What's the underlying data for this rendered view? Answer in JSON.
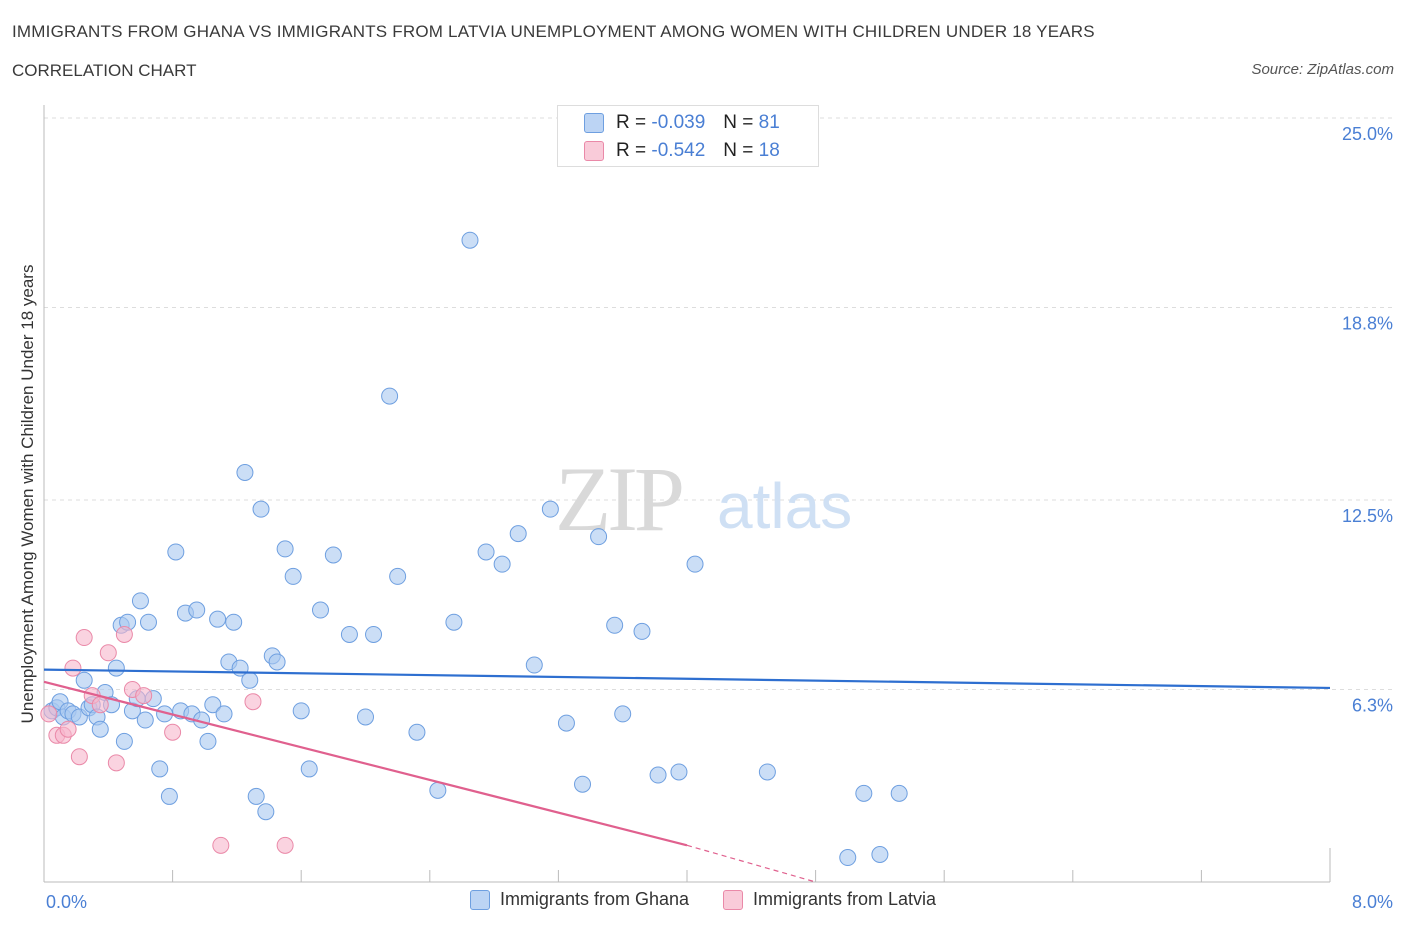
{
  "header": {
    "title": "IMMIGRANTS FROM GHANA VS IMMIGRANTS FROM LATVIA UNEMPLOYMENT AMONG WOMEN WITH CHILDREN UNDER 18 YEARS",
    "subtitle": "CORRELATION CHART",
    "source": "Source: ZipAtlas.com"
  },
  "watermark": {
    "zip": "ZIP",
    "atlas": "atlas"
  },
  "stats": {
    "r_label": "R =",
    "n_label": "N =",
    "rows": [
      {
        "r": "-0.039",
        "n": "81"
      },
      {
        "r": "-0.542",
        "n": "18"
      }
    ]
  },
  "colors": {
    "ghana_fill": "#a8c8f0",
    "ghana_stroke": "#6e9fe0",
    "ghana_line": "#2e6fd0",
    "latvia_fill": "#f7b6cb",
    "latvia_stroke": "#ea89a8",
    "latvia_line": "#e0608e",
    "tick_label": "#4a7fd4",
    "grid": "#dddddd"
  },
  "chart_data": {
    "type": "scatter",
    "xlabel": "",
    "ylabel": "Unemployment Among Women with Children Under 18 years",
    "xlim": [
      0,
      8.0
    ],
    "ylim": [
      0,
      25.0
    ],
    "x_tick_labels": [
      "0.0%",
      "8.0%"
    ],
    "y_ticks": [
      6.3,
      12.5,
      18.8,
      25.0
    ],
    "y_tick_labels": [
      "6.3%",
      "12.5%",
      "18.8%",
      "25.0%"
    ],
    "grid": true,
    "legend_position": "bottom",
    "series": [
      {
        "name": "Immigrants from Ghana",
        "points": [
          [
            0.05,
            5.6
          ],
          [
            0.08,
            5.7
          ],
          [
            0.1,
            5.9
          ],
          [
            0.12,
            5.4
          ],
          [
            0.15,
            5.6
          ],
          [
            0.18,
            5.5
          ],
          [
            0.22,
            5.4
          ],
          [
            0.25,
            6.6
          ],
          [
            0.28,
            5.7
          ],
          [
            0.3,
            5.8
          ],
          [
            0.33,
            5.4
          ],
          [
            0.35,
            5.0
          ],
          [
            0.38,
            6.2
          ],
          [
            0.42,
            5.8
          ],
          [
            0.45,
            7.0
          ],
          [
            0.48,
            8.4
          ],
          [
            0.5,
            4.6
          ],
          [
            0.52,
            8.5
          ],
          [
            0.55,
            5.6
          ],
          [
            0.58,
            6.0
          ],
          [
            0.6,
            9.2
          ],
          [
            0.63,
            5.3
          ],
          [
            0.65,
            8.5
          ],
          [
            0.68,
            6.0
          ],
          [
            0.72,
            3.7
          ],
          [
            0.75,
            5.5
          ],
          [
            0.78,
            2.8
          ],
          [
            0.82,
            10.8
          ],
          [
            0.85,
            5.6
          ],
          [
            0.88,
            8.8
          ],
          [
            0.92,
            5.5
          ],
          [
            0.95,
            8.9
          ],
          [
            0.98,
            5.3
          ],
          [
            1.02,
            4.6
          ],
          [
            1.05,
            5.8
          ],
          [
            1.08,
            8.6
          ],
          [
            1.12,
            5.5
          ],
          [
            1.15,
            7.2
          ],
          [
            1.18,
            8.5
          ],
          [
            1.22,
            7.0
          ],
          [
            1.25,
            13.4
          ],
          [
            1.28,
            6.6
          ],
          [
            1.32,
            2.8
          ],
          [
            1.35,
            12.2
          ],
          [
            1.38,
            2.3
          ],
          [
            1.42,
            7.4
          ],
          [
            1.45,
            7.2
          ],
          [
            1.5,
            10.9
          ],
          [
            1.55,
            10.0
          ],
          [
            1.6,
            5.6
          ],
          [
            1.65,
            3.7
          ],
          [
            1.72,
            8.9
          ],
          [
            1.8,
            10.7
          ],
          [
            1.9,
            8.1
          ],
          [
            2.0,
            5.4
          ],
          [
            2.05,
            8.1
          ],
          [
            2.15,
            15.9
          ],
          [
            2.2,
            10.0
          ],
          [
            2.32,
            4.9
          ],
          [
            2.45,
            3.0
          ],
          [
            2.55,
            8.5
          ],
          [
            2.65,
            21.0
          ],
          [
            2.75,
            10.8
          ],
          [
            2.85,
            10.4
          ],
          [
            2.95,
            11.4
          ],
          [
            3.05,
            7.1
          ],
          [
            3.15,
            12.2
          ],
          [
            3.25,
            5.2
          ],
          [
            3.35,
            3.2
          ],
          [
            3.45,
            11.3
          ],
          [
            3.55,
            8.4
          ],
          [
            3.6,
            5.5
          ],
          [
            3.72,
            8.2
          ],
          [
            3.82,
            3.5
          ],
          [
            3.95,
            3.6
          ],
          [
            4.05,
            10.4
          ],
          [
            4.5,
            3.6
          ],
          [
            5.0,
            0.8
          ],
          [
            5.1,
            2.9
          ],
          [
            5.2,
            0.9
          ],
          [
            5.32,
            2.9
          ]
        ]
      },
      {
        "name": "Immigrants from Latvia",
        "points": [
          [
            0.03,
            5.5
          ],
          [
            0.08,
            4.8
          ],
          [
            0.12,
            4.8
          ],
          [
            0.15,
            5.0
          ],
          [
            0.18,
            7.0
          ],
          [
            0.22,
            4.1
          ],
          [
            0.25,
            8.0
          ],
          [
            0.3,
            6.1
          ],
          [
            0.35,
            5.8
          ],
          [
            0.4,
            7.5
          ],
          [
            0.45,
            3.9
          ],
          [
            0.5,
            8.1
          ],
          [
            0.55,
            6.3
          ],
          [
            0.62,
            6.1
          ],
          [
            0.8,
            4.9
          ],
          [
            1.1,
            1.2
          ],
          [
            1.3,
            5.9
          ],
          [
            1.5,
            1.2
          ]
        ]
      }
    ],
    "trend_lines": [
      {
        "series": "Immigrants from Ghana",
        "x": [
          0.0,
          8.0
        ],
        "y": [
          6.95,
          6.35
        ]
      },
      {
        "series": "Immigrants from Latvia",
        "x": [
          0.0,
          4.0
        ],
        "y": [
          6.55,
          1.2
        ],
        "dashed_x": [
          4.0,
          4.8
        ],
        "dashed_y": [
          1.2,
          0.0
        ]
      }
    ]
  },
  "legend_bottom": {
    "items": [
      {
        "label": "Immigrants from Ghana"
      },
      {
        "label": "Immigrants from Latvia"
      }
    ]
  }
}
